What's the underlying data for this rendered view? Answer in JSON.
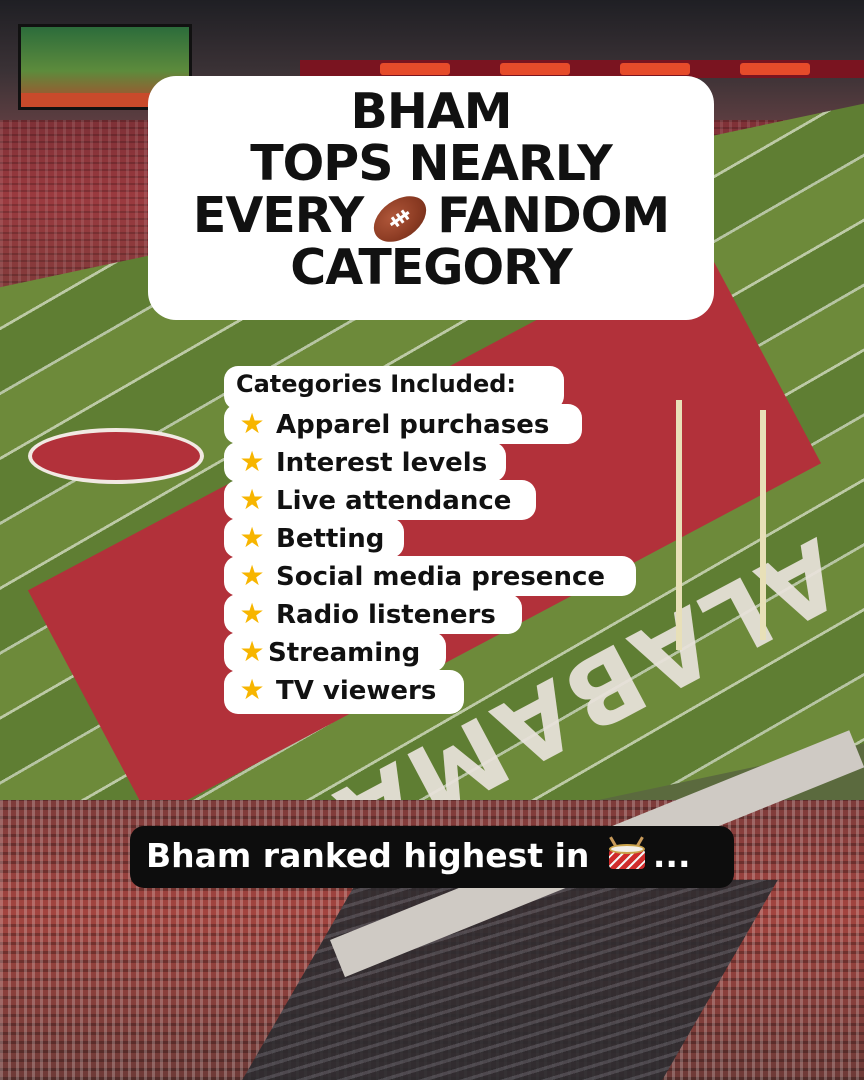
{
  "headline": {
    "line1": "BHAM",
    "line2": "TOPS NEARLY",
    "line3_before": "EVERY",
    "line3_icon": "football-icon",
    "line3_after": "FANDOM",
    "line4": "CATEGORY"
  },
  "categories": {
    "title": "Categories Included:",
    "bullet_icon": "star-icon",
    "items": [
      "Apparel purchases",
      "Interest levels",
      "Live attendance",
      "Betting",
      "Social media presence",
      "Radio listeners",
      "Streaming",
      "TV viewers"
    ]
  },
  "banner": {
    "text": "Bham ranked highest in",
    "icon": "drum-icon",
    "suffix": "..."
  },
  "background": {
    "endzone_text": "ALABAMA"
  },
  "colors": {
    "overlay_bg": "#ffffff",
    "banner_bg": "#0d0d0d",
    "star": "#f7b500",
    "crimson": "#b2313a"
  }
}
